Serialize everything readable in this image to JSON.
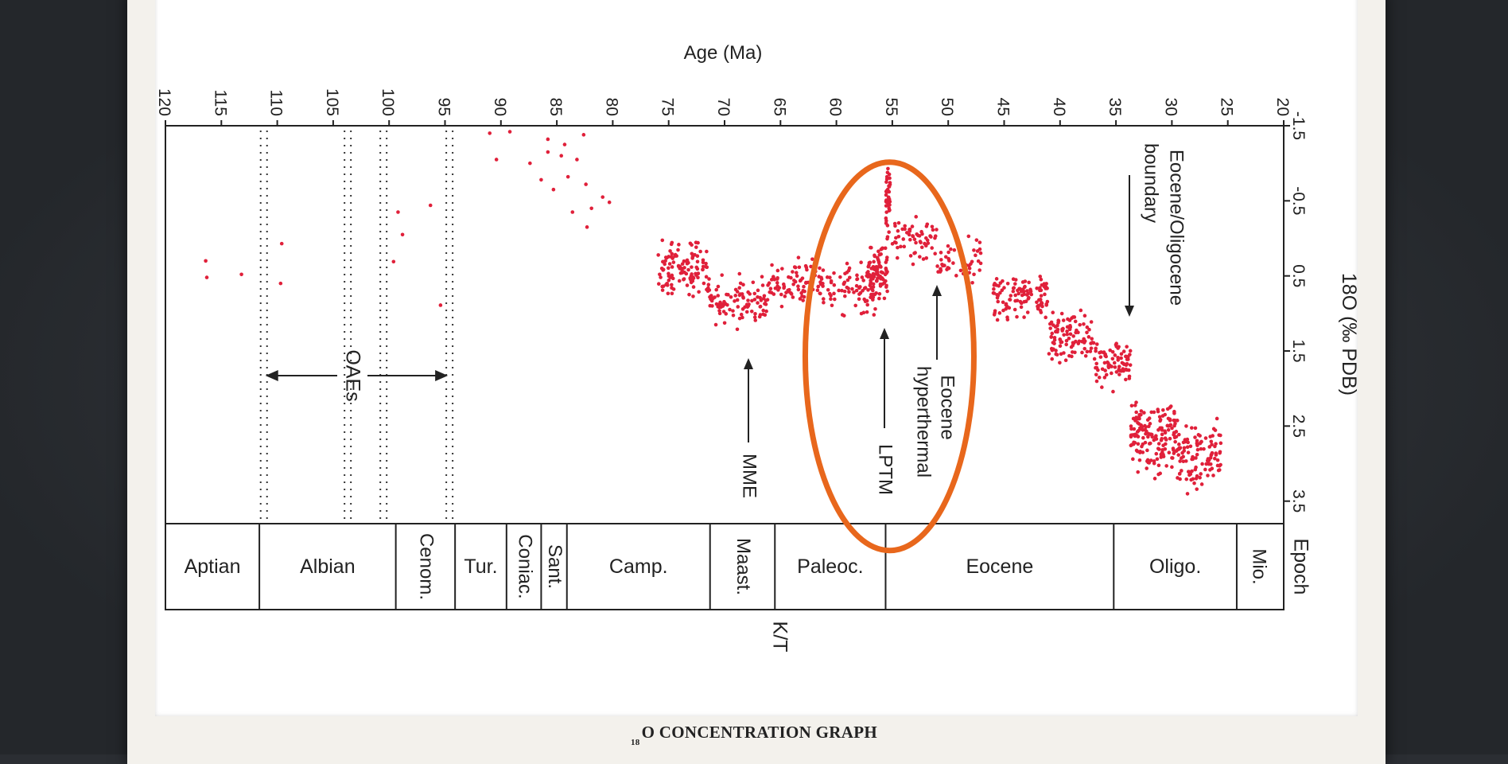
{
  "caption": {
    "superscript": "18",
    "text": "O CONCENTRATION GRAPH"
  },
  "colors": {
    "points": "#e0203a",
    "highlight": "#e8671c",
    "axis": "#222222"
  },
  "chart_data": {
    "type": "scatter",
    "orientation": "rotated-90",
    "title": "",
    "xlabel": "Age (Ma)",
    "ylabel": "18O (‰ PDB)",
    "xlim": [
      120,
      20
    ],
    "ylim": [
      -1.5,
      3.8
    ],
    "x_ticks": [
      120,
      115,
      110,
      105,
      100,
      95,
      90,
      85,
      80,
      75,
      70,
      65,
      60,
      55,
      50,
      45,
      40,
      35,
      30,
      25,
      20
    ],
    "y_ticks": [
      -1.5,
      -0.5,
      0.5,
      1.5,
      2.5,
      3.5
    ],
    "epochs": [
      {
        "label": "Aptian",
        "from": 120,
        "to": 111.6
      },
      {
        "label": "Albian",
        "from": 111.6,
        "to": 99.4
      },
      {
        "label": "Cenom.",
        "from": 99.4,
        "to": 94.1
      },
      {
        "label": "Tur.",
        "from": 94.1,
        "to": 89.5
      },
      {
        "label": "Coniac.",
        "from": 89.5,
        "to": 86.4
      },
      {
        "label": "Sant.",
        "from": 86.4,
        "to": 84.1
      },
      {
        "label": "Camp.",
        "from": 84.1,
        "to": 71.3
      },
      {
        "label": "Maast.",
        "from": 71.3,
        "to": 65.5
      },
      {
        "label": "Paleoc.",
        "from": 65.5,
        "to": 55.6
      },
      {
        "label": "Eocene",
        "from": 55.6,
        "to": 35.2
      },
      {
        "label": "Oligo.",
        "from": 35.2,
        "to": 24.2
      },
      {
        "label": "Mio.",
        "from": 24.2,
        "to": 20.4
      }
    ],
    "epoch_axis_label": "Epoch",
    "boundary_label": "K/T",
    "oae_lines": [
      111.2,
      103.7,
      100.5,
      94.6
    ],
    "annotations": [
      {
        "text": "OAEs",
        "from": 111.2,
        "to": 94.6,
        "at": 1.9
      },
      {
        "text": "MME",
        "age": 67.8,
        "d18O": 1.2
      },
      {
        "text": "LPTM",
        "age": 55.4,
        "d18O": 1.1
      },
      {
        "text": "Eocene hyperthermal",
        "age": 52.6,
        "d18O": 0.6
      },
      {
        "text": "Eocene/Oligocene boundary",
        "age": 33.6,
        "d18O": 1.0
      }
    ],
    "highlight": {
      "shape": "ellipse",
      "age_center": 55.6,
      "d18O_center": 1.2
    },
    "series": [
      {
        "points": [
          [
            116.4,
            0.3
          ],
          [
            116.3,
            0.52
          ],
          [
            113.2,
            0.48
          ],
          [
            109.6,
            0.07
          ],
          [
            109.7,
            0.6
          ],
          [
            99.2,
            -0.35
          ],
          [
            98.8,
            -0.05
          ],
          [
            99.6,
            0.31
          ],
          [
            96.3,
            -0.44
          ],
          [
            95.4,
            0.89
          ],
          [
            91.0,
            -1.4
          ],
          [
            89.2,
            -1.42
          ],
          [
            90.4,
            -1.05
          ],
          [
            87.4,
            -1.0
          ],
          [
            85.8,
            -1.15
          ],
          [
            86.4,
            -0.78
          ],
          [
            84.6,
            -1.1
          ],
          [
            84.0,
            -0.82
          ],
          [
            85.3,
            -0.65
          ],
          [
            83.2,
            -1.05
          ],
          [
            82.4,
            -0.72
          ],
          [
            83.6,
            -0.35
          ],
          [
            81.9,
            -0.4
          ],
          [
            80.9,
            -0.55
          ],
          [
            80.3,
            -0.48
          ],
          [
            82.3,
            -0.15
          ],
          [
            85.8,
            -1.32
          ],
          [
            84.3,
            -1.25
          ],
          [
            82.6,
            -1.38
          ]
        ],
        "clusters": [
          {
            "age_from": 76.0,
            "age_to": 71.5,
            "d18O_from": -0.1,
            "d18O_to": 0.9,
            "n": 120
          },
          {
            "age_from": 71.5,
            "age_to": 66.2,
            "d18O_from": 0.4,
            "d18O_to": 1.3,
            "n": 100
          },
          {
            "age_from": 66.2,
            "age_to": 61.0,
            "d18O_from": 0.2,
            "d18O_to": 1.0,
            "n": 90
          },
          {
            "age_from": 61.0,
            "age_to": 56.5,
            "d18O_from": 0.2,
            "d18O_to": 1.2,
            "n": 70
          },
          {
            "age_from": 57.2,
            "age_to": 55.4,
            "d18O_from": 0.0,
            "d18O_to": 0.9,
            "n": 90
          },
          {
            "age_from": 55.6,
            "age_to": 55.2,
            "d18O_from": -1.2,
            "d18O_to": 0.2,
            "n": 45
          },
          {
            "age_from": 55.0,
            "age_to": 51.0,
            "d18O_from": -0.4,
            "d18O_to": 0.4,
            "n": 60
          },
          {
            "age_from": 51.0,
            "age_to": 47.0,
            "d18O_from": -0.2,
            "d18O_to": 0.7,
            "n": 45
          },
          {
            "age_from": 46.0,
            "age_to": 41.0,
            "d18O_from": 0.3,
            "d18O_to": 1.2,
            "n": 110
          },
          {
            "age_from": 41.0,
            "age_to": 37.0,
            "d18O_from": 0.8,
            "d18O_to": 1.8,
            "n": 100
          },
          {
            "age_from": 37.0,
            "age_to": 33.7,
            "d18O_from": 1.2,
            "d18O_to": 2.1,
            "n": 80
          },
          {
            "age_from": 33.7,
            "age_to": 29.5,
            "d18O_from": 2.0,
            "d18O_to": 3.3,
            "n": 160
          },
          {
            "age_from": 29.5,
            "age_to": 25.5,
            "d18O_from": 2.2,
            "d18O_to": 3.6,
            "n": 110
          }
        ]
      }
    ]
  }
}
